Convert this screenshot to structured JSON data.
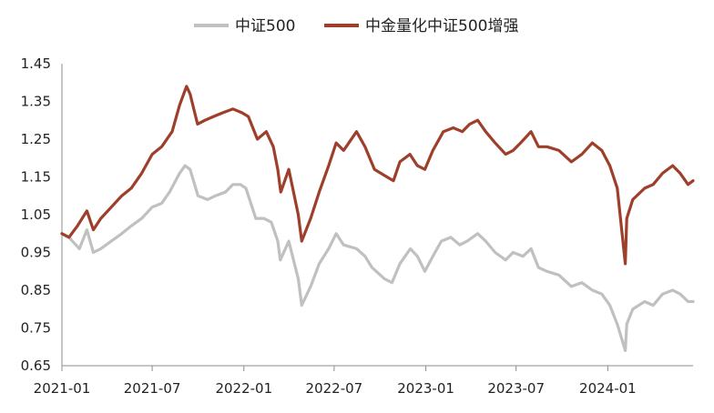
{
  "chart_data": {
    "type": "line",
    "title": "",
    "xlabel": "",
    "ylabel": "",
    "ylim": [
      0.65,
      1.45
    ],
    "yticks": [
      "1.45",
      "1.35",
      "1.25",
      "1.15",
      "1.05",
      "0.95",
      "0.85",
      "0.75",
      "0.65"
    ],
    "xticks": [
      "2021-01",
      "2021-07",
      "2022-01",
      "2022-07",
      "2023-01",
      "2023-07",
      "2024-01"
    ],
    "legend_position": "top",
    "grid": false,
    "series": [
      {
        "name": "中证500",
        "color": "#c0c0c0",
        "points": [
          [
            "2021-01-01",
            1.0
          ],
          [
            "2021-01-15",
            0.99
          ],
          [
            "2021-02-05",
            0.96
          ],
          [
            "2021-02-20",
            1.01
          ],
          [
            "2021-03-05",
            0.95
          ],
          [
            "2021-03-20",
            0.96
          ],
          [
            "2021-04-10",
            0.98
          ],
          [
            "2021-05-01",
            1.0
          ],
          [
            "2021-05-20",
            1.02
          ],
          [
            "2021-06-10",
            1.04
          ],
          [
            "2021-07-01",
            1.07
          ],
          [
            "2021-07-20",
            1.08
          ],
          [
            "2021-08-05",
            1.11
          ],
          [
            "2021-08-25",
            1.16
          ],
          [
            "2021-09-05",
            1.18
          ],
          [
            "2021-09-15",
            1.17
          ],
          [
            "2021-10-01",
            1.1
          ],
          [
            "2021-10-20",
            1.09
          ],
          [
            "2021-11-05",
            1.1
          ],
          [
            "2021-11-25",
            1.11
          ],
          [
            "2021-12-10",
            1.13
          ],
          [
            "2021-12-25",
            1.13
          ],
          [
            "2022-01-05",
            1.12
          ],
          [
            "2022-01-25",
            1.04
          ],
          [
            "2022-02-10",
            1.04
          ],
          [
            "2022-02-25",
            1.03
          ],
          [
            "2022-03-10",
            0.98
          ],
          [
            "2022-03-15",
            0.93
          ],
          [
            "2022-04-01",
            0.98
          ],
          [
            "2022-04-20",
            0.88
          ],
          [
            "2022-04-27",
            0.81
          ],
          [
            "2022-05-15",
            0.86
          ],
          [
            "2022-06-01",
            0.92
          ],
          [
            "2022-06-20",
            0.96
          ],
          [
            "2022-07-05",
            1.0
          ],
          [
            "2022-07-20",
            0.97
          ],
          [
            "2022-08-15",
            0.96
          ],
          [
            "2022-09-01",
            0.94
          ],
          [
            "2022-09-15",
            0.91
          ],
          [
            "2022-10-10",
            0.88
          ],
          [
            "2022-10-25",
            0.87
          ],
          [
            "2022-11-10",
            0.92
          ],
          [
            "2022-12-01",
            0.96
          ],
          [
            "2022-12-15",
            0.94
          ],
          [
            "2022-12-30",
            0.9
          ],
          [
            "2023-01-15",
            0.94
          ],
          [
            "2023-02-01",
            0.98
          ],
          [
            "2023-02-20",
            0.99
          ],
          [
            "2023-03-10",
            0.97
          ],
          [
            "2023-03-25",
            0.98
          ],
          [
            "2023-04-15",
            1.0
          ],
          [
            "2023-05-01",
            0.98
          ],
          [
            "2023-05-20",
            0.95
          ],
          [
            "2023-06-10",
            0.93
          ],
          [
            "2023-06-25",
            0.95
          ],
          [
            "2023-07-15",
            0.94
          ],
          [
            "2023-07-31",
            0.96
          ],
          [
            "2023-08-15",
            0.91
          ],
          [
            "2023-09-01",
            0.9
          ],
          [
            "2023-09-25",
            0.89
          ],
          [
            "2023-10-20",
            0.86
          ],
          [
            "2023-11-10",
            0.87
          ],
          [
            "2023-12-01",
            0.85
          ],
          [
            "2023-12-20",
            0.84
          ],
          [
            "2024-01-05",
            0.81
          ],
          [
            "2024-01-20",
            0.76
          ],
          [
            "2024-02-05",
            0.69
          ],
          [
            "2024-02-08",
            0.76
          ],
          [
            "2024-02-20",
            0.8
          ],
          [
            "2024-03-15",
            0.82
          ],
          [
            "2024-04-01",
            0.81
          ],
          [
            "2024-04-20",
            0.84
          ],
          [
            "2024-05-10",
            0.85
          ],
          [
            "2024-05-25",
            0.84
          ],
          [
            "2024-06-10",
            0.82
          ],
          [
            "2024-06-20",
            0.82
          ]
        ]
      },
      {
        "name": "中金量化中证500增强",
        "color": "#9e3f2b",
        "points": [
          [
            "2021-01-01",
            1.0
          ],
          [
            "2021-01-15",
            0.99
          ],
          [
            "2021-02-01",
            1.02
          ],
          [
            "2021-02-20",
            1.06
          ],
          [
            "2021-03-05",
            1.01
          ],
          [
            "2021-03-20",
            1.04
          ],
          [
            "2021-04-10",
            1.07
          ],
          [
            "2021-05-01",
            1.1
          ],
          [
            "2021-05-20",
            1.12
          ],
          [
            "2021-06-10",
            1.16
          ],
          [
            "2021-07-01",
            1.21
          ],
          [
            "2021-07-20",
            1.23
          ],
          [
            "2021-08-10",
            1.27
          ],
          [
            "2021-08-25",
            1.34
          ],
          [
            "2021-09-08",
            1.39
          ],
          [
            "2021-09-15",
            1.37
          ],
          [
            "2021-09-30",
            1.29
          ],
          [
            "2021-10-15",
            1.3
          ],
          [
            "2021-11-01",
            1.31
          ],
          [
            "2021-11-20",
            1.32
          ],
          [
            "2021-12-10",
            1.33
          ],
          [
            "2021-12-28",
            1.32
          ],
          [
            "2022-01-10",
            1.31
          ],
          [
            "2022-01-28",
            1.25
          ],
          [
            "2022-02-15",
            1.27
          ],
          [
            "2022-03-01",
            1.23
          ],
          [
            "2022-03-10",
            1.17
          ],
          [
            "2022-03-16",
            1.11
          ],
          [
            "2022-04-01",
            1.17
          ],
          [
            "2022-04-20",
            1.05
          ],
          [
            "2022-04-27",
            0.98
          ],
          [
            "2022-05-15",
            1.04
          ],
          [
            "2022-06-01",
            1.11
          ],
          [
            "2022-06-20",
            1.18
          ],
          [
            "2022-07-05",
            1.24
          ],
          [
            "2022-07-20",
            1.22
          ],
          [
            "2022-08-15",
            1.27
          ],
          [
            "2022-09-01",
            1.23
          ],
          [
            "2022-09-20",
            1.17
          ],
          [
            "2022-10-15",
            1.15
          ],
          [
            "2022-10-28",
            1.14
          ],
          [
            "2022-11-10",
            1.19
          ],
          [
            "2022-11-30",
            1.21
          ],
          [
            "2022-12-15",
            1.18
          ],
          [
            "2022-12-30",
            1.17
          ],
          [
            "2023-01-15",
            1.22
          ],
          [
            "2023-02-05",
            1.27
          ],
          [
            "2023-02-25",
            1.28
          ],
          [
            "2023-03-15",
            1.27
          ],
          [
            "2023-03-30",
            1.29
          ],
          [
            "2023-04-15",
            1.3
          ],
          [
            "2023-05-01",
            1.27
          ],
          [
            "2023-05-20",
            1.24
          ],
          [
            "2023-06-10",
            1.21
          ],
          [
            "2023-06-25",
            1.22
          ],
          [
            "2023-07-10",
            1.24
          ],
          [
            "2023-07-31",
            1.27
          ],
          [
            "2023-08-15",
            1.23
          ],
          [
            "2023-09-01",
            1.23
          ],
          [
            "2023-09-25",
            1.22
          ],
          [
            "2023-10-20",
            1.19
          ],
          [
            "2023-11-10",
            1.21
          ],
          [
            "2023-12-01",
            1.24
          ],
          [
            "2023-12-20",
            1.22
          ],
          [
            "2024-01-05",
            1.18
          ],
          [
            "2024-01-20",
            1.12
          ],
          [
            "2024-02-05",
            0.92
          ],
          [
            "2024-02-08",
            1.04
          ],
          [
            "2024-02-20",
            1.09
          ],
          [
            "2024-03-15",
            1.12
          ],
          [
            "2024-04-01",
            1.13
          ],
          [
            "2024-04-20",
            1.16
          ],
          [
            "2024-05-10",
            1.18
          ],
          [
            "2024-05-25",
            1.16
          ],
          [
            "2024-06-10",
            1.13
          ],
          [
            "2024-06-20",
            1.14
          ]
        ]
      }
    ]
  }
}
